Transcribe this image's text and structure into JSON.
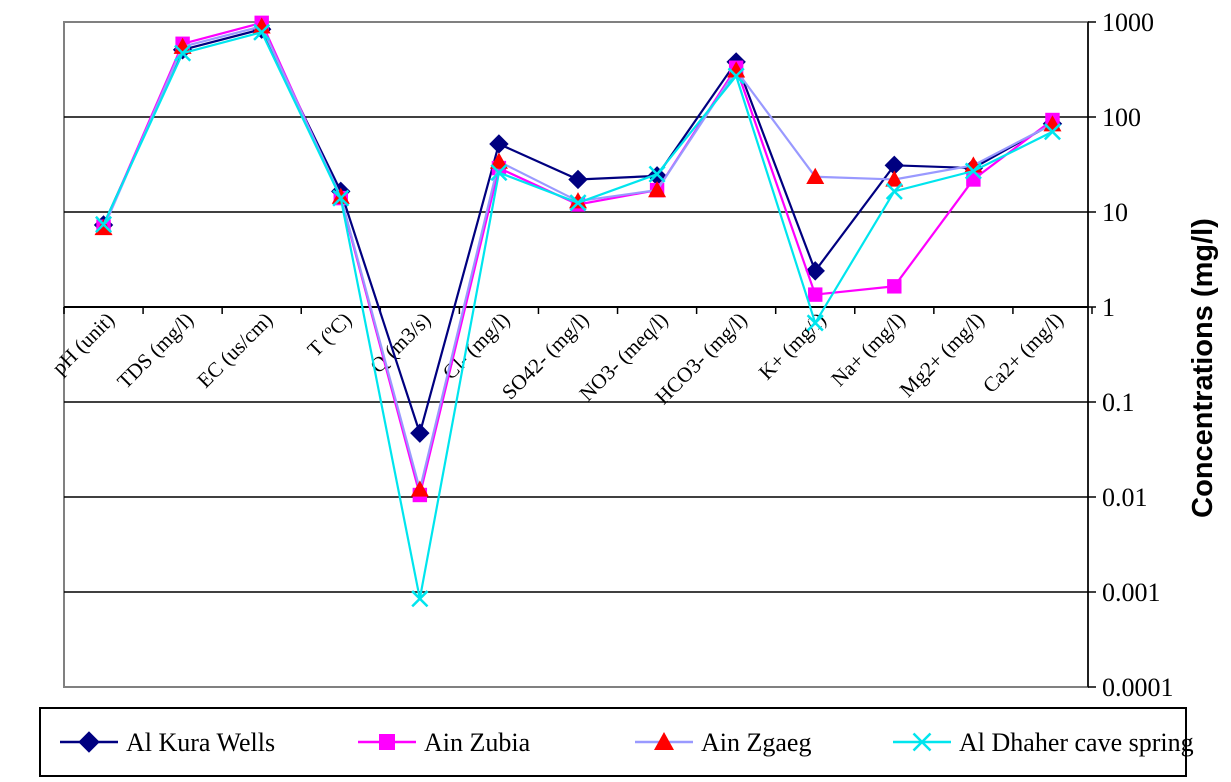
{
  "chart_data": {
    "type": "line",
    "title": "",
    "xlabel": "",
    "ylabel": "Concentrations (mg/l)",
    "y_scale": "log",
    "ylim": [
      0.0001,
      1000
    ],
    "y_ticks": [
      {
        "value": 1000,
        "label": "1000"
      },
      {
        "value": 100,
        "label": "100"
      },
      {
        "value": 10,
        "label": "10"
      },
      {
        "value": 1,
        "label": "1"
      },
      {
        "value": 0.1,
        "label": "0.1"
      },
      {
        "value": 0.01,
        "label": "0.01"
      },
      {
        "value": 0.001,
        "label": "0.001"
      },
      {
        "value": 0.0001,
        "label": "0.0001"
      }
    ],
    "grid": true,
    "legend_position": "bottom",
    "categories": [
      "pH (unit)",
      "TDS (mg/l)",
      "EC (us/cm)",
      "T (ºC)",
      "Q (m3/s)",
      "Cl- (mg/l)",
      "SO42- (mg/l)",
      "NO3- (meq/l)",
      "HCO3- (mg/l)",
      "K+ (mg/l)",
      "Na+ (mg/l)",
      "Mg2+ (mg/l)",
      "Ca2+ (mg/l)"
    ],
    "series": [
      {
        "name": "Al Kura Wells",
        "color": "#000080",
        "marker": "diamond",
        "values": [
          7.3,
          510,
          840,
          16.5,
          0.047,
          52,
          22,
          24,
          380,
          2.4,
          31,
          29,
          85
        ]
      },
      {
        "name": "Ain Zubia",
        "color": "#FF00FF",
        "marker": "square",
        "values": [
          7.0,
          590,
          980,
          14,
          0.0105,
          29,
          12,
          17,
          330,
          1.35,
          1.65,
          22,
          93
        ]
      },
      {
        "name": "Ain Zgaeg",
        "color": "#9999FF",
        "marker": "triangle",
        "marker_color": "#FF0000",
        "values": [
          6.8,
          550,
          900,
          14.5,
          0.012,
          34,
          13,
          17,
          310,
          23.5,
          22,
          31,
          84
        ]
      },
      {
        "name": "Al Dhaher cave spring",
        "color": "#00E5EE",
        "marker": "x",
        "values": [
          7.4,
          470,
          780,
          14,
          0.00085,
          26,
          12.5,
          25,
          270,
          0.68,
          16.5,
          27,
          70
        ]
      }
    ]
  }
}
